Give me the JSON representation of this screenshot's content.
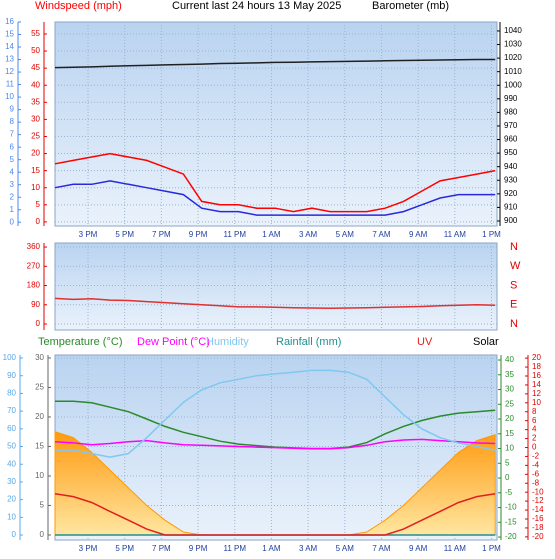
{
  "chart_data": [
    {
      "type": "line",
      "title": "Current last 24 hours 13 May 2025",
      "x": [
        0,
        1,
        2,
        3,
        4,
        5,
        6,
        7,
        8,
        9,
        10,
        11,
        12,
        13,
        14,
        15,
        16,
        17,
        18,
        19,
        20,
        21,
        22,
        23,
        24
      ],
      "xlim": [
        0,
        24.1
      ],
      "xticks": [
        {
          "value": 1.8,
          "label": "3 PM"
        },
        {
          "value": 3.8,
          "label": "5 PM"
        },
        {
          "value": 5.8,
          "label": "7 PM"
        },
        {
          "value": 7.8,
          "label": "9 PM"
        },
        {
          "value": 9.8,
          "label": "11 PM"
        },
        {
          "value": 11.8,
          "label": "1 AM"
        },
        {
          "value": 13.8,
          "label": "3 AM"
        },
        {
          "value": 15.8,
          "label": "5 AM"
        },
        {
          "value": 17.8,
          "label": "7 AM"
        },
        {
          "value": 19.8,
          "label": "9 AM"
        },
        {
          "value": 21.8,
          "label": "11 AM"
        },
        {
          "value": 23.8,
          "label": "1 PM"
        }
      ],
      "ylim": [
        -1.2,
        58.5
      ],
      "yticks": [
        0,
        5,
        10,
        15,
        20,
        25,
        30,
        35,
        40,
        45,
        50,
        55
      ],
      "y2lim": [
        896.3,
        1046.6
      ],
      "y2ticks": [
        900,
        910,
        920,
        930,
        940,
        950,
        960,
        970,
        980,
        990,
        1000,
        1010,
        1020,
        1030,
        1040
      ],
      "y3lim": [
        -0.3,
        16
      ],
      "y3ticks": [
        0,
        1,
        2,
        3,
        4,
        5,
        6,
        7,
        8,
        9,
        10,
        11,
        12,
        13,
        14,
        15,
        16
      ],
      "grid": true,
      "series": [
        {
          "name": "Windspeed (mph)",
          "color": "#ff0000",
          "values": [
            17,
            18,
            19,
            20,
            19,
            18,
            16,
            14,
            6,
            5,
            5,
            4,
            4,
            3,
            4,
            3,
            3,
            3,
            4,
            6,
            9,
            12,
            13,
            14,
            15
          ]
        },
        {
          "color": "#2828e0",
          "values": [
            10,
            11,
            11,
            12,
            11,
            10,
            9,
            8,
            4,
            3,
            3,
            2,
            2,
            2,
            2,
            2,
            2,
            2,
            2,
            3,
            5,
            7,
            8,
            8,
            8
          ]
        },
        {
          "name": "Barometer (mb)",
          "color": "#202020",
          "axis": "y2",
          "values": [
            1013,
            1013.2,
            1013.5,
            1014,
            1014.3,
            1014.6,
            1015,
            1015.3,
            1015.6,
            1016,
            1016.2,
            1016.5,
            1016.8,
            1017,
            1017.2,
            1017.4,
            1017.6,
            1017.8,
            1018,
            1018.2,
            1018.4,
            1018.6,
            1018.8,
            1019,
            1019
          ]
        }
      ]
    },
    {
      "type": "line",
      "x": [
        0,
        1,
        2,
        3,
        4,
        5,
        6,
        7,
        8,
        9,
        10,
        11,
        12,
        13,
        14,
        15,
        16,
        17,
        18,
        19,
        20,
        21,
        22,
        23,
        24
      ],
      "xlim": [
        0,
        24.1
      ],
      "xticks": [
        1.8,
        3.8,
        5.8,
        7.8,
        9.8,
        11.8,
        13.8,
        15.8,
        17.8,
        19.8,
        21.8,
        23.8
      ],
      "ylim": [
        -28,
        379
      ],
      "yticks": [
        0,
        90,
        180,
        270,
        360
      ],
      "compass_labels": [
        "N",
        "W",
        "S",
        "E",
        "N"
      ],
      "grid": true,
      "series": [
        {
          "color": "#e03030",
          "values": [
            120,
            115,
            118,
            112,
            110,
            105,
            100,
            95,
            90,
            85,
            80,
            80,
            78,
            76,
            75,
            74,
            75,
            76,
            78,
            80,
            82,
            85,
            88,
            90,
            88
          ]
        }
      ]
    },
    {
      "type": "line",
      "x": [
        0,
        1,
        2,
        3,
        4,
        5,
        6,
        7,
        8,
        9,
        10,
        11,
        12,
        13,
        14,
        15,
        16,
        17,
        18,
        19,
        20,
        21,
        22,
        23,
        24
      ],
      "xlim": [
        0,
        24.1
      ],
      "xticks": [
        {
          "value": 1.8,
          "label": "3 PM"
        },
        {
          "value": 3.8,
          "label": "5 PM"
        },
        {
          "value": 5.8,
          "label": "7 PM"
        },
        {
          "value": 7.8,
          "label": "9 PM"
        },
        {
          "value": 9.8,
          "label": "11 PM"
        },
        {
          "value": 11.8,
          "label": "1 AM"
        },
        {
          "value": 13.8,
          "label": "3 AM"
        },
        {
          "value": 15.8,
          "label": "5 AM"
        },
        {
          "value": 17.8,
          "label": "7 AM"
        },
        {
          "value": 19.8,
          "label": "9 AM"
        },
        {
          "value": 21.8,
          "label": "11 AM"
        },
        {
          "value": 23.8,
          "label": "1 PM"
        }
      ],
      "ylim": [
        -0.85,
        30.5
      ],
      "yticks": [
        0,
        5,
        10,
        15,
        20,
        25,
        30
      ],
      "y4lim": [
        -2.8,
        101.7
      ],
      "y4ticks": [
        0,
        10,
        20,
        30,
        40,
        50,
        60,
        70,
        80,
        90,
        100
      ],
      "y2lim": [
        -21,
        41.7
      ],
      "y2ticks": [
        -20,
        -15,
        -10,
        -5,
        0,
        5,
        10,
        15,
        20,
        25,
        30,
        35,
        40
      ],
      "y3lim": [
        -20.7,
        20.7
      ],
      "y3ticks": [
        -20,
        -18,
        -16,
        -14,
        -12,
        -10,
        -8,
        -6,
        -4,
        -2,
        0,
        2,
        4,
        6,
        8,
        10,
        12,
        14,
        16,
        18,
        20
      ],
      "grid": true,
      "series": [
        {
          "name": "Solar",
          "color": "#ff9900",
          "style": "area",
          "values": [
            17.5,
            16.5,
            14,
            11,
            8,
            5,
            2.5,
            0.5,
            0,
            0,
            0,
            0,
            0,
            0,
            0,
            0,
            0,
            0.5,
            2.5,
            5,
            8,
            11,
            14,
            16,
            17
          ]
        },
        {
          "name": "Temperature (°C)",
          "color": "#2a8a2a",
          "axis": "y2",
          "values": [
            26,
            26,
            25.5,
            24,
            22.5,
            20,
            17.5,
            15.5,
            14,
            12.5,
            11.5,
            11,
            10.5,
            10.2,
            10,
            10,
            10.5,
            12,
            15,
            17.5,
            19.5,
            21,
            22,
            22.5,
            23
          ]
        },
        {
          "name": "Dew Point (°C)",
          "color": "#ff00ff",
          "values": [
            15.8,
            15.6,
            15.3,
            15.5,
            15.8,
            16,
            15.6,
            15.3,
            15.2,
            15.1,
            15,
            14.9,
            14.8,
            14.7,
            14.6,
            14.6,
            14.8,
            15.2,
            15.8,
            16.1,
            16.2,
            16,
            15.8,
            15.6,
            15.5
          ]
        },
        {
          "name": "Humidity",
          "color": "#80c8f0",
          "axis": "y4",
          "values": [
            48,
            48,
            46,
            44,
            46,
            55,
            65,
            75,
            82,
            86,
            88,
            90,
            91,
            92,
            93,
            93,
            92,
            88,
            78,
            68,
            60,
            55,
            52,
            50,
            48
          ]
        },
        {
          "name": "Rainfall (mm)",
          "color": "#209090",
          "values": [
            0,
            0,
            0,
            0,
            0,
            0,
            0,
            0,
            0,
            0,
            0,
            0,
            0,
            0,
            0,
            0,
            0,
            0,
            0,
            0,
            0,
            0,
            0,
            0,
            0
          ]
        },
        {
          "name": "UV",
          "color": "#e02020",
          "values": [
            7,
            6.5,
            5.5,
            4,
            2.5,
            1,
            0,
            0,
            0,
            0,
            0,
            0,
            0,
            0,
            0,
            0,
            0,
            0,
            0,
            1,
            2.5,
            4,
            5.5,
            6.5,
            7
          ]
        }
      ]
    }
  ]
}
